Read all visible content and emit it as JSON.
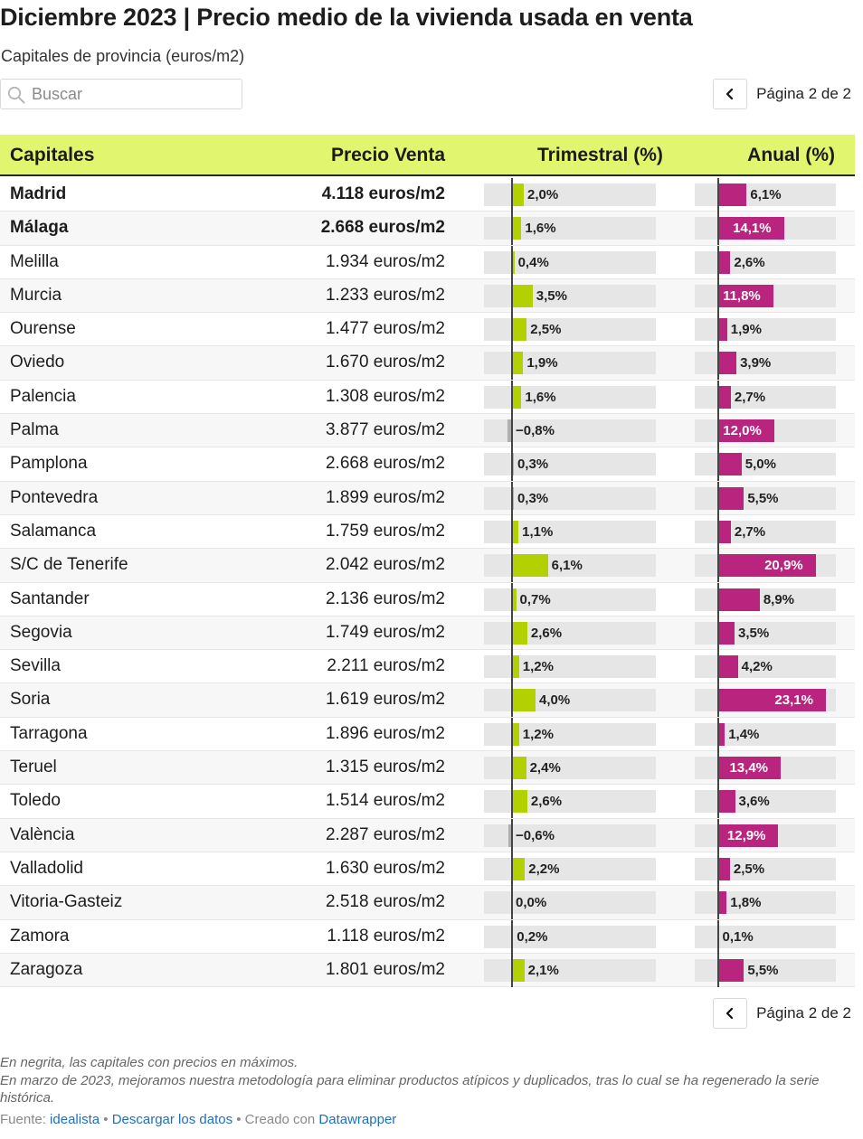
{
  "header": {
    "title": "Diciembre 2023 | Precio medio de la vivienda usada en venta",
    "subtitle": "Capitales de provincia (euros/m2)"
  },
  "search": {
    "placeholder": "Buscar"
  },
  "pagination": {
    "label": "Página 2 de 2"
  },
  "colors": {
    "header_bg": "#e2f56e",
    "trimestral_bar": "#b3d100",
    "negative_bar": "#b0b0b0",
    "anual_bar": "#b8247e",
    "bar_track": "#e6e6e6"
  },
  "chart_data": {
    "type": "table",
    "columns": [
      "Capitales",
      "Precio Venta",
      "Trimestral (%)",
      "Anual (%)"
    ],
    "rows": [
      {
        "city": "Madrid",
        "price": "4.118 euros/m2",
        "quarterly": 2.0,
        "quarterly_label": "2,0%",
        "annual": 6.1,
        "annual_label": "6,1%",
        "bold": true
      },
      {
        "city": "Málaga",
        "price": "2.668 euros/m2",
        "quarterly": 1.6,
        "quarterly_label": "1,6%",
        "annual": 14.1,
        "annual_label": "14,1%",
        "bold": true
      },
      {
        "city": "Melilla",
        "price": "1.934 euros/m2",
        "quarterly": 0.4,
        "quarterly_label": "0,4%",
        "annual": 2.6,
        "annual_label": "2,6%",
        "bold": false
      },
      {
        "city": "Murcia",
        "price": "1.233 euros/m2",
        "quarterly": 3.5,
        "quarterly_label": "3,5%",
        "annual": 11.8,
        "annual_label": "11,8%",
        "bold": false
      },
      {
        "city": "Ourense",
        "price": "1.477 euros/m2",
        "quarterly": 2.5,
        "quarterly_label": "2,5%",
        "annual": 1.9,
        "annual_label": "1,9%",
        "bold": false
      },
      {
        "city": "Oviedo",
        "price": "1.670 euros/m2",
        "quarterly": 1.9,
        "quarterly_label": "1,9%",
        "annual": 3.9,
        "annual_label": "3,9%",
        "bold": false
      },
      {
        "city": "Palencia",
        "price": "1.308 euros/m2",
        "quarterly": 1.6,
        "quarterly_label": "1,6%",
        "annual": 2.7,
        "annual_label": "2,7%",
        "bold": false
      },
      {
        "city": "Palma",
        "price": "3.877 euros/m2",
        "quarterly": -0.8,
        "quarterly_label": "−0,8%",
        "annual": 12.0,
        "annual_label": "12,0%",
        "bold": false
      },
      {
        "city": "Pamplona",
        "price": "2.668 euros/m2",
        "quarterly": 0.3,
        "quarterly_label": "0,3%",
        "annual": 5.0,
        "annual_label": "5,0%",
        "bold": false
      },
      {
        "city": "Pontevedra",
        "price": "1.899 euros/m2",
        "quarterly": 0.3,
        "quarterly_label": "0,3%",
        "annual": 5.5,
        "annual_label": "5,5%",
        "bold": false
      },
      {
        "city": "Salamanca",
        "price": "1.759 euros/m2",
        "quarterly": 1.1,
        "quarterly_label": "1,1%",
        "annual": 2.7,
        "annual_label": "2,7%",
        "bold": false
      },
      {
        "city": "S/C de Tenerife",
        "price": "2.042 euros/m2",
        "quarterly": 6.1,
        "quarterly_label": "6,1%",
        "annual": 20.9,
        "annual_label": "20,9%",
        "bold": false
      },
      {
        "city": "Santander",
        "price": "2.136 euros/m2",
        "quarterly": 0.7,
        "quarterly_label": "0,7%",
        "annual": 8.9,
        "annual_label": "8,9%",
        "bold": false
      },
      {
        "city": "Segovia",
        "price": "1.749 euros/m2",
        "quarterly": 2.6,
        "quarterly_label": "2,6%",
        "annual": 3.5,
        "annual_label": "3,5%",
        "bold": false
      },
      {
        "city": "Sevilla",
        "price": "2.211 euros/m2",
        "quarterly": 1.2,
        "quarterly_label": "1,2%",
        "annual": 4.2,
        "annual_label": "4,2%",
        "bold": false
      },
      {
        "city": "Soria",
        "price": "1.619 euros/m2",
        "quarterly": 4.0,
        "quarterly_label": "4,0%",
        "annual": 23.1,
        "annual_label": "23,1%",
        "bold": false
      },
      {
        "city": "Tarragona",
        "price": "1.896 euros/m2",
        "quarterly": 1.2,
        "quarterly_label": "1,2%",
        "annual": 1.4,
        "annual_label": "1,4%",
        "bold": false
      },
      {
        "city": "Teruel",
        "price": "1.315 euros/m2",
        "quarterly": 2.4,
        "quarterly_label": "2,4%",
        "annual": 13.4,
        "annual_label": "13,4%",
        "bold": false
      },
      {
        "city": "Toledo",
        "price": "1.514 euros/m2",
        "quarterly": 2.6,
        "quarterly_label": "2,6%",
        "annual": 3.6,
        "annual_label": "3,6%",
        "bold": false
      },
      {
        "city": "València",
        "price": "2.287 euros/m2",
        "quarterly": -0.6,
        "quarterly_label": "−0,6%",
        "annual": 12.9,
        "annual_label": "12,9%",
        "bold": false
      },
      {
        "city": "Valladolid",
        "price": "1.630 euros/m2",
        "quarterly": 2.2,
        "quarterly_label": "2,2%",
        "annual": 2.5,
        "annual_label": "2,5%",
        "bold": false
      },
      {
        "city": "Vitoria-Gasteiz",
        "price": "2.518 euros/m2",
        "quarterly": 0.0,
        "quarterly_label": "0,0%",
        "annual": 1.8,
        "annual_label": "1,8%",
        "bold": false
      },
      {
        "city": "Zamora",
        "price": "1.118 euros/m2",
        "quarterly": 0.2,
        "quarterly_label": "0,2%",
        "annual": 0.1,
        "annual_label": "0,1%",
        "bold": false
      },
      {
        "city": "Zaragoza",
        "price": "1.801 euros/m2",
        "quarterly": 2.1,
        "quarterly_label": "2,1%",
        "annual": 5.5,
        "annual_label": "5,5%",
        "bold": false
      }
    ]
  },
  "notes": {
    "line1": "En negrita, las capitales con precios en máximos.",
    "line2": "En marzo de 2023, mejoramos nuestra metodología para eliminar productos atípicos y duplicados, tras lo cual se ha regenerado la serie histórica."
  },
  "footer": {
    "source_prefix": "Fuente: ",
    "source_link": "idealista",
    "sep1": " • ",
    "download_link": "Descargar los datos",
    "sep2": " • Creado con ",
    "tool_link": "Datawrapper"
  }
}
